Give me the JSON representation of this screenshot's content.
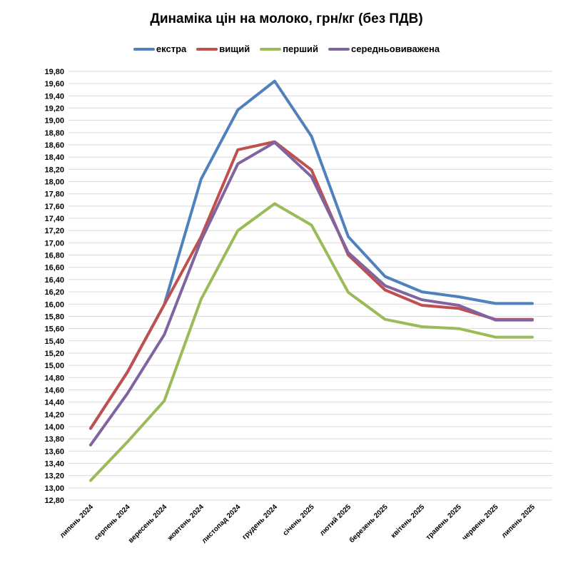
{
  "chart_data": {
    "type": "line",
    "title": "Динаміка цін на молоко, грн/кг (без ПДВ)",
    "xlabel": "",
    "ylabel": "",
    "ylim": [
      12.8,
      19.8
    ],
    "ytick_step": 0.2,
    "grid": true,
    "legend_position": "top",
    "categories": [
      "липень 2024",
      "серпень 2024",
      "вересень 2024",
      "жовтень 2024",
      "листопад 2024",
      "грудень 2024",
      "січень 2025",
      "лютий 2025",
      "березень 2025",
      "квітень 2025",
      "травень 2025",
      "червень 2025",
      "липень 2025"
    ],
    "series": [
      {
        "name": "екстра",
        "color": "#4f81bd",
        "values": [
          13.97,
          14.89,
          15.99,
          18.04,
          19.17,
          19.64,
          18.74,
          17.1,
          16.45,
          16.2,
          16.12,
          16.01,
          16.01
        ]
      },
      {
        "name": "вищий",
        "color": "#c0504d",
        "values": [
          13.97,
          14.89,
          15.99,
          17.1,
          18.52,
          18.65,
          18.19,
          16.8,
          16.23,
          15.98,
          15.93,
          15.75,
          15.75
        ]
      },
      {
        "name": "перший",
        "color": "#9bbb59",
        "values": [
          13.12,
          13.75,
          14.42,
          16.08,
          17.2,
          17.64,
          17.29,
          16.19,
          15.75,
          15.63,
          15.6,
          15.46,
          15.46
        ]
      },
      {
        "name": "середньовиважена",
        "color": "#8064a2",
        "values": [
          13.7,
          14.54,
          15.5,
          17.04,
          18.29,
          18.64,
          18.08,
          16.84,
          16.3,
          16.07,
          15.98,
          15.74,
          15.74
        ]
      }
    ]
  }
}
